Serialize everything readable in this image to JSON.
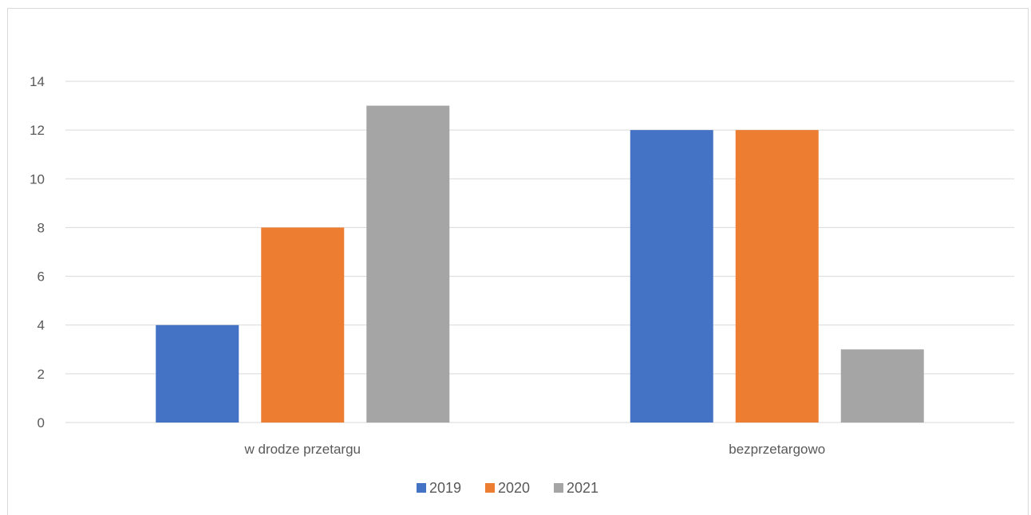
{
  "chart_data": {
    "type": "bar",
    "categories": [
      "w drodze przetargu",
      "bezprzetargowo"
    ],
    "series": [
      {
        "name": "2019",
        "color": "#4472C4",
        "values": [
          4,
          12
        ]
      },
      {
        "name": "2020",
        "color": "#ED7D31",
        "values": [
          8,
          12
        ]
      },
      {
        "name": "2021",
        "color": "#A5A5A5",
        "values": [
          13,
          3
        ]
      }
    ],
    "ylim": [
      0,
      14
    ],
    "yticks": [
      0,
      2,
      4,
      6,
      8,
      10,
      12,
      14
    ],
    "grid": true,
    "legend": "bottom"
  }
}
